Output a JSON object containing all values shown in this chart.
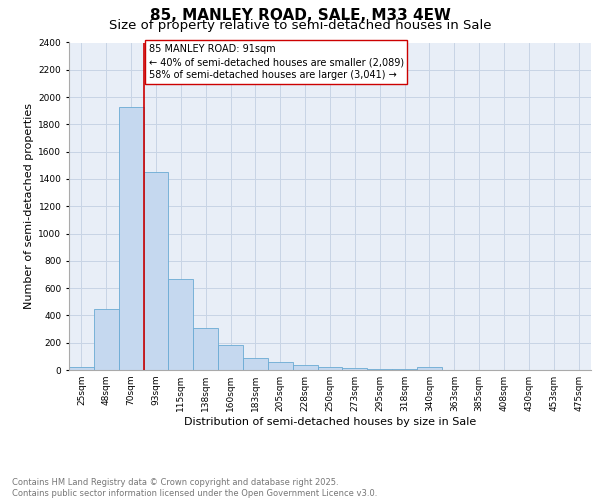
{
  "title": "85, MANLEY ROAD, SALE, M33 4EW",
  "subtitle": "Size of property relative to semi-detached houses in Sale",
  "xlabel": "Distribution of semi-detached houses by size in Sale",
  "ylabel": "Number of semi-detached properties",
  "bar_labels": [
    "25sqm",
    "48sqm",
    "70sqm",
    "93sqm",
    "115sqm",
    "138sqm",
    "160sqm",
    "183sqm",
    "205sqm",
    "228sqm",
    "250sqm",
    "273sqm",
    "295sqm",
    "318sqm",
    "340sqm",
    "363sqm",
    "385sqm",
    "408sqm",
    "430sqm",
    "453sqm",
    "475sqm"
  ],
  "bar_values": [
    20,
    450,
    1930,
    1450,
    670,
    305,
    180,
    90,
    60,
    35,
    20,
    15,
    8,
    5,
    20,
    3,
    2,
    1,
    1,
    1,
    0
  ],
  "bar_color": "#c5d8ef",
  "bar_edge_color": "#6aaad4",
  "grid_color": "#c8d4e5",
  "background_color": "#e8eef7",
  "vline_x": 2.5,
  "vline_color": "#cc0000",
  "annotation_text": "85 MANLEY ROAD: 91sqm\n← 40% of semi-detached houses are smaller (2,089)\n58% of semi-detached houses are larger (3,041) →",
  "annotation_box_color": "#ffffff",
  "annotation_box_edge": "#cc0000",
  "ylim": [
    0,
    2400
  ],
  "yticks": [
    0,
    200,
    400,
    600,
    800,
    1000,
    1200,
    1400,
    1600,
    1800,
    2000,
    2200,
    2400
  ],
  "footer_text": "Contains HM Land Registry data © Crown copyright and database right 2025.\nContains public sector information licensed under the Open Government Licence v3.0.",
  "title_fontsize": 11,
  "subtitle_fontsize": 9.5,
  "label_fontsize": 8,
  "tick_fontsize": 6.5,
  "footer_fontsize": 6,
  "ann_fontsize": 7
}
